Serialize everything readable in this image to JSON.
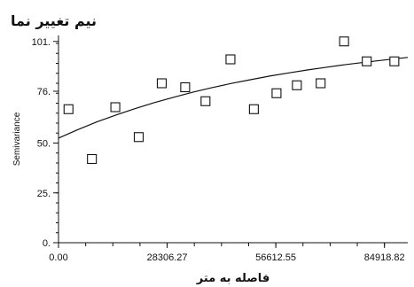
{
  "chart_data": {
    "type": "scatter",
    "title": "نیم تغییر نما",
    "xlabel": "فاصله به متر",
    "ylabel": "Semivariance",
    "xlim": [
      0,
      91000
    ],
    "ylim": [
      0,
      104
    ],
    "x_ticks": [
      0,
      28306.27,
      56612.55,
      84918.82
    ],
    "x_tick_labels": [
      "0.00",
      "28306.27",
      "56612.55",
      "84918.82"
    ],
    "x_minor_step": 7076.57,
    "y_ticks": [
      0,
      25,
      50,
      76,
      101
    ],
    "y_tick_labels": [
      "0.",
      "25.",
      "50.",
      "76.",
      "101."
    ],
    "y_minor_step": 5,
    "grid": false,
    "legend": "none",
    "marker": "open-square",
    "series": [
      {
        "points": [
          {
            "x": 2600,
            "y": 67
          },
          {
            "x": 8700,
            "y": 42
          },
          {
            "x": 14800,
            "y": 68
          },
          {
            "x": 20900,
            "y": 53
          },
          {
            "x": 26900,
            "y": 80
          },
          {
            "x": 33000,
            "y": 78
          },
          {
            "x": 38300,
            "y": 71
          },
          {
            "x": 44800,
            "y": 92
          },
          {
            "x": 50900,
            "y": 67
          },
          {
            "x": 56800,
            "y": 75
          },
          {
            "x": 62100,
            "y": 79
          },
          {
            "x": 68300,
            "y": 80
          },
          {
            "x": 74400,
            "y": 101
          },
          {
            "x": 80300,
            "y": 91
          },
          {
            "x": 87500,
            "y": 91
          }
        ]
      }
    ],
    "fit_curve": {
      "x": [
        0,
        5000,
        10000,
        15000,
        20000,
        25000,
        30000,
        35000,
        40000,
        45000,
        50000,
        55000,
        60000,
        65000,
        70000,
        75000,
        80000,
        85000,
        91000
      ],
      "y": [
        52.5,
        56.7,
        60.6,
        64.1,
        67.3,
        70.3,
        73.0,
        75.5,
        77.8,
        79.9,
        81.8,
        83.6,
        85.2,
        86.7,
        88.1,
        89.4,
        90.6,
        91.7,
        93.0
      ]
    },
    "colors": {
      "marker": "#111111",
      "line": "#111111",
      "axis": "#111111"
    }
  }
}
